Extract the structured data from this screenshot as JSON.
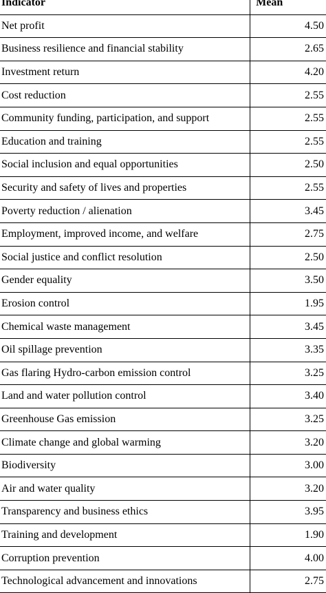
{
  "table": {
    "headers": {
      "indicator": "Indicator",
      "mean": "Mean"
    },
    "rows": [
      {
        "indicator": "Net profit",
        "mean": "4.50"
      },
      {
        "indicator": "Business resilience and financial stability",
        "mean": "2.65"
      },
      {
        "indicator": "Investment return",
        "mean": "4.20"
      },
      {
        "indicator": "Cost reduction",
        "mean": "2.55"
      },
      {
        "indicator": "Community funding, participation, and support",
        "mean": "2.55"
      },
      {
        "indicator": "Education and training",
        "mean": "2.55"
      },
      {
        "indicator": "Social inclusion and equal opportunities",
        "mean": "2.50"
      },
      {
        "indicator": "Security and safety of lives and properties",
        "mean": "2.55"
      },
      {
        "indicator": "Poverty reduction / alienation",
        "mean": "3.45"
      },
      {
        "indicator": "Employment, improved income, and welfare",
        "mean": "2.75"
      },
      {
        "indicator": "Social justice and conflict resolution",
        "mean": "2.50"
      },
      {
        "indicator": "Gender equality",
        "mean": "3.50"
      },
      {
        "indicator": "Erosion control",
        "mean": "1.95"
      },
      {
        "indicator": "Chemical waste management",
        "mean": "3.45"
      },
      {
        "indicator": "Oil spillage prevention",
        "mean": "3.35"
      },
      {
        "indicator": "Gas flaring Hydro-carbon emission control",
        "mean": "3.25"
      },
      {
        "indicator": "Land and water pollution control",
        "mean": "3.40"
      },
      {
        "indicator": "Greenhouse Gas emission",
        "mean": "3.25"
      },
      {
        "indicator": "Climate change and global warming",
        "mean": "3.20"
      },
      {
        "indicator": "Biodiversity",
        "mean": "3.00"
      },
      {
        "indicator": "Air and water quality",
        "mean": "3.20"
      },
      {
        "indicator": "Transparency and business ethics",
        "mean": "3.95"
      },
      {
        "indicator": "Training and development",
        "mean": "1.90"
      },
      {
        "indicator": "Corruption prevention",
        "mean": "4.00"
      },
      {
        "indicator": "Technological advancement and innovations",
        "mean": "2.75"
      }
    ]
  }
}
